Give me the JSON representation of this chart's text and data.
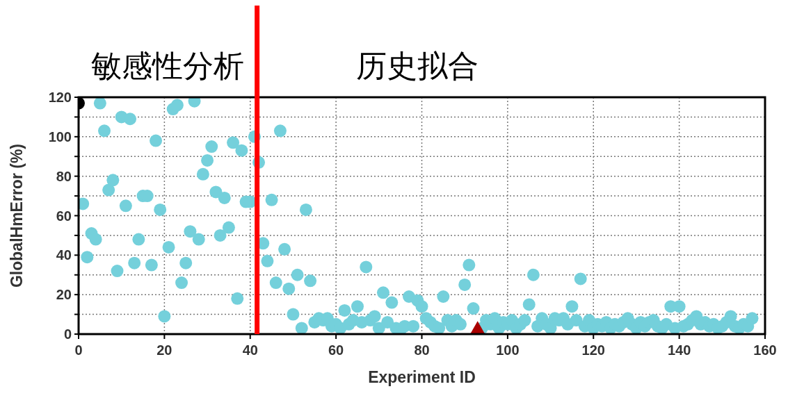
{
  "chart_data": {
    "type": "scatter",
    "xlabel": "Experiment ID",
    "ylabel": "GlobalHmError (%)",
    "annotations": [
      "敏感性分析",
      "历史拟合"
    ],
    "xlim": [
      0,
      160
    ],
    "ylim": [
      0,
      120
    ],
    "xticks": [
      0,
      20,
      40,
      60,
      80,
      100,
      120,
      140,
      160
    ],
    "yticks": [
      0,
      {
        "value": 10,
        "label": null
      },
      20,
      {
        "value": 30,
        "label": null
      },
      40,
      {
        "value": 50,
        "label": null
      },
      60,
      {
        "value": 70,
        "label": null
      },
      80,
      {
        "value": 90,
        "label": null
      },
      100,
      {
        "value": 110,
        "label": null
      },
      120
    ],
    "grid": true,
    "ref_lines": [
      {
        "axis": "x",
        "value": 41.6,
        "color": "#ff0000"
      }
    ],
    "series": [
      {
        "color": "#74d0db",
        "marker": "circle",
        "x": [
          1,
          2,
          3,
          4,
          5,
          6,
          7,
          8,
          9,
          10,
          11,
          12,
          13,
          14,
          15,
          16,
          17,
          18,
          19,
          20,
          21,
          22,
          23,
          24,
          25,
          26,
          27,
          28,
          29,
          30,
          31,
          32,
          33,
          34,
          35,
          36,
          37,
          38,
          39,
          40,
          41,
          42,
          43,
          44,
          45,
          46,
          47,
          48,
          49,
          50,
          51,
          52,
          53,
          54,
          55,
          56,
          57,
          58,
          59,
          60,
          61,
          62,
          63,
          64,
          65,
          66,
          67,
          68,
          69,
          70,
          71,
          72,
          73,
          74,
          75,
          76,
          77,
          78,
          79,
          80,
          81,
          82,
          83,
          84,
          85,
          86,
          87,
          88,
          89,
          90,
          91,
          92,
          94,
          95,
          96,
          97,
          98,
          99,
          100,
          101,
          102,
          103,
          104,
          105,
          106,
          107,
          108,
          109,
          110,
          111,
          112,
          113,
          114,
          115,
          116,
          117,
          118,
          119,
          120,
          121,
          122,
          123,
          124,
          125,
          126,
          127,
          128,
          129,
          130,
          131,
          132,
          133,
          134,
          135,
          136,
          137,
          138,
          139,
          140,
          141,
          142,
          143,
          144,
          145,
          146,
          147,
          148,
          149,
          150,
          151,
          152,
          153,
          154,
          155,
          156,
          157
        ],
        "values": [
          66,
          39,
          51,
          48,
          117,
          103,
          73,
          78,
          32,
          110,
          65,
          109,
          36,
          48,
          70,
          70,
          35,
          98,
          63,
          9,
          44,
          114,
          116,
          26,
          36,
          52,
          118,
          48,
          81,
          88,
          95,
          72,
          50,
          69,
          54,
          97,
          18,
          93,
          67,
          67,
          100,
          87,
          46,
          37,
          68,
          26,
          103,
          43,
          23,
          10,
          30,
          3,
          63,
          27,
          6,
          8,
          7,
          8,
          4,
          5,
          3,
          12,
          5,
          7,
          14,
          6,
          34,
          7,
          9,
          3,
          21,
          6,
          16,
          3,
          2,
          4,
          19,
          4,
          17,
          14,
          8,
          6,
          4,
          3,
          19,
          7,
          4,
          7,
          5,
          25,
          35,
          13,
          3,
          7,
          5,
          8,
          3,
          6,
          5,
          7,
          3,
          5,
          7,
          15,
          30,
          4,
          8,
          5,
          3,
          8,
          7,
          8,
          5,
          14,
          7,
          28,
          4,
          7,
          3,
          5,
          4,
          6,
          3,
          5,
          4,
          6,
          8,
          5,
          3,
          6,
          4,
          6,
          7,
          4,
          3,
          5,
          14,
          3,
          14,
          4,
          5,
          7,
          9,
          5,
          6,
          4,
          5,
          3,
          4,
          6,
          9,
          4,
          3,
          5,
          4,
          8
        ]
      },
      {
        "color": "#000000",
        "marker": "circle",
        "x": [
          0
        ],
        "values": [
          117
        ]
      },
      {
        "color": "#aa0000",
        "marker": "triangle",
        "x": [
          93
        ],
        "values": [
          2
        ]
      }
    ]
  }
}
